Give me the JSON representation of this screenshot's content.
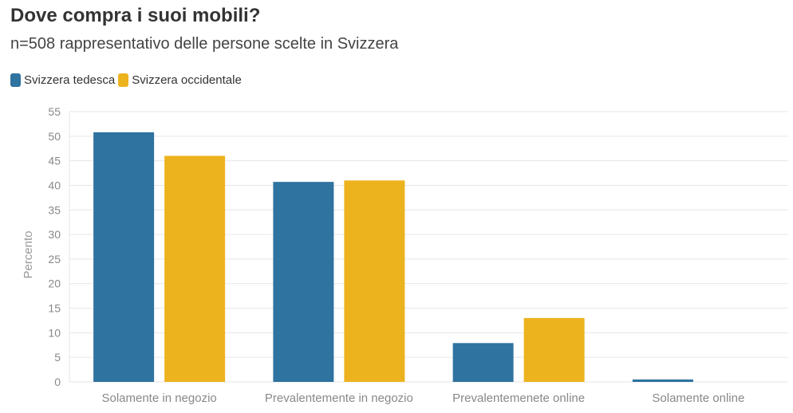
{
  "colors": {
    "series_1": "#2f73a0",
    "series_2": "#edb31f",
    "grid": "#e6e6e6",
    "axis_text": "#888888"
  },
  "chart_data": {
    "type": "bar",
    "title": "Dove compra i suoi mobili?",
    "subtitle": "n=508 rappresentativo delle persone scelte in Svizzera",
    "xlabel": "",
    "ylabel": "Percento",
    "ylim": [
      0,
      55
    ],
    "yticks": [
      0,
      5,
      10,
      15,
      20,
      25,
      30,
      35,
      40,
      45,
      50,
      55
    ],
    "grid": true,
    "legend_position": "top-left",
    "categories": [
      "Solamente in negozio",
      "Prevalentemente in negozio",
      "Prevalentemenete online",
      "Solamente online"
    ],
    "series": [
      {
        "name": "Svizzera tedesca",
        "values": [
          50.8,
          40.7,
          7.9,
          0.5
        ]
      },
      {
        "name": "Svizzera occidentale",
        "values": [
          46.0,
          41.0,
          13.0,
          0.0
        ]
      }
    ]
  }
}
